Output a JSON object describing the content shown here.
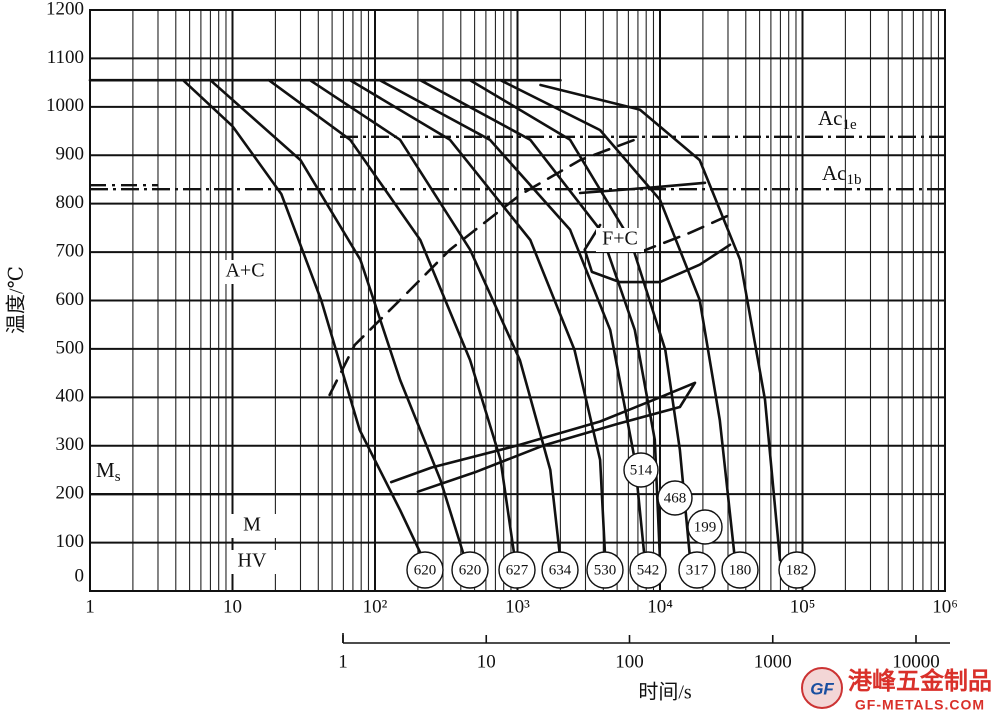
{
  "chart_data": {
    "type": "line",
    "y_label": "温度/℃",
    "x_label": "时间/s",
    "xlog": true,
    "xlim": [
      1,
      1000000
    ],
    "xticks": [
      1,
      10,
      {
        "value": 100,
        "label": "10²"
      },
      {
        "value": 1000,
        "label": "10³"
      },
      {
        "value": 10000,
        "label": "10⁴"
      },
      {
        "value": 100000,
        "label": "10⁵"
      },
      {
        "value": 1000000,
        "label": "10⁶"
      }
    ],
    "xminor": [
      2,
      3,
      4,
      5,
      6,
      7,
      8,
      9,
      20,
      30,
      40,
      50,
      60,
      70,
      80,
      90,
      200,
      300,
      400,
      500,
      600,
      700,
      800,
      900,
      2000,
      3000,
      4000,
      5000,
      6000,
      7000,
      8000,
      9000,
      20000,
      30000,
      40000,
      50000,
      60000,
      70000,
      80000,
      90000,
      200000,
      300000,
      400000,
      500000,
      600000,
      700000,
      800000,
      900000
    ],
    "x2lim": [
      1,
      10000
    ],
    "x2ticks": [
      1,
      10,
      100,
      1000,
      10000
    ],
    "ylim": [
      0,
      1200
    ],
    "yticks": [
      0,
      100,
      200,
      300,
      400,
      500,
      600,
      700,
      800,
      900,
      1000,
      1100,
      1200
    ],
    "grid": true,
    "color": "#111111",
    "reference_lines": [
      {
        "label": "Ac",
        "sub": "1e",
        "value": 938,
        "style": "dashdot"
      },
      {
        "label": "Ac",
        "sub": "1b",
        "value": 830,
        "style": "dashdot"
      },
      {
        "label": "M",
        "sub": "s",
        "value": 200,
        "style": "solid"
      }
    ],
    "series": [
      {
        "style": "solid",
        "x": [
          1,
          2000
        ],
        "values": [
          1055,
          1055
        ]
      },
      {
        "style": "solid",
        "x": [
          4.5,
          10,
          22,
          42,
          78,
          150,
          240
        ],
        "values": [
          1055,
          960,
          820,
          600,
          333,
          167,
          40
        ]
      },
      {
        "style": "solid",
        "x": [
          7,
          30,
          79,
          150,
          288,
          430
        ],
        "values": [
          1055,
          890,
          684,
          436,
          229,
          64
        ]
      },
      {
        "style": "solid",
        "x": [
          18,
          67,
          208,
          465,
          760,
          960
        ],
        "values": [
          1055,
          932,
          725,
          477,
          271,
          64
        ]
      },
      {
        "style": "solid",
        "x": [
          35,
          150,
          465,
          1040,
          1700,
          2000
        ],
        "values": [
          1055,
          932,
          705,
          477,
          250,
          64
        ]
      },
      {
        "style": "solid",
        "x": [
          67,
          336,
          1230,
          2510,
          3800,
          4130
        ],
        "values": [
          1055,
          932,
          725,
          498,
          271,
          64
        ]
      },
      {
        "style": "solid",
        "x": [
          108,
          640,
          2340,
          4470,
          6650,
          7820
        ],
        "values": [
          1055,
          932,
          746,
          539,
          271,
          64
        ]
      },
      {
        "style": "solid",
        "x": [
          208,
          1230,
          3800,
          6650,
          9200,
          10000
        ],
        "values": [
          1055,
          932,
          746,
          539,
          312,
          64
        ]
      },
      {
        "style": "solid",
        "x": [
          465,
          2340,
          6200,
          10900,
          13800,
          16300
        ],
        "values": [
          1055,
          932,
          725,
          498,
          291,
          64
        ]
      },
      {
        "style": "solid",
        "x": [
          760,
          3800,
          10000,
          19000,
          26300,
          33600
        ],
        "values": [
          1055,
          952,
          808,
          601,
          353,
          64
        ]
      },
      {
        "style": "solid",
        "x": [
          1450,
          7240,
          19000,
          36500,
          54600,
          69500
        ],
        "values": [
          1045,
          994,
          890,
          684,
          395,
          64
        ]
      },
      {
        "style": "dashed",
        "x": [
          48,
          72,
          150,
          336,
          1040,
          2750,
          7240
        ],
        "values": [
          405,
          508,
          601,
          705,
          818,
          890,
          936
        ]
      },
      {
        "style": "solid",
        "x": [
          3800,
          2960,
          3330,
          5230,
          10000,
          19000,
          31000
        ],
        "values": [
          756,
          705,
          659,
          638,
          638,
          674,
          715
        ]
      },
      {
        "style": "dashed",
        "x": [
          7240,
          16300,
          31000
        ],
        "values": [
          700,
          740,
          777
        ]
      },
      {
        "style": "solid",
        "x": [
          2750,
          8500,
          20700
        ],
        "values": [
          822,
          833,
          843
        ]
      },
      {
        "style": "solid",
        "x": [
          130,
          250,
          1040,
          3800,
          10000,
          17600,
          13800,
          5000,
          1500,
          500,
          200
        ],
        "values": [
          225,
          255,
          302,
          350,
          400,
          430,
          380,
          345,
          300,
          245,
          205
        ]
      }
    ],
    "annotations": [
      "A+C",
      "F+C",
      "M",
      "HV"
    ],
    "hardness_bottom": [
      620,
      620,
      627,
      634,
      530,
      542,
      317,
      180,
      182
    ],
    "hardness_upper": [
      514,
      468,
      199
    ]
  },
  "watermark": {
    "brand": "港峰五金制品",
    "site": "GF-METALS.COM",
    "logo": "GF"
  }
}
